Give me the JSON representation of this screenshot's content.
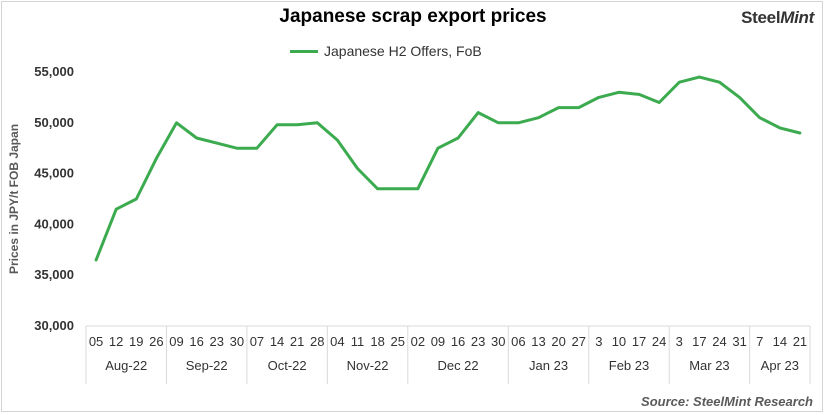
{
  "title": "Japanese scrap export prices",
  "brand": {
    "name_part1": "Steel",
    "name_part2": "Mint"
  },
  "source": "Source: SteelMint Research",
  "colors": {
    "line": "#3cab4f",
    "axis": "#d9d9d9",
    "text": "#333333"
  },
  "chart_data": {
    "type": "line",
    "title": "Japanese scrap export prices",
    "ylabel": "Prices in JPY/t FOB Japan",
    "xlabel": "",
    "ylim": [
      30000,
      55000
    ],
    "yticks": [
      30000,
      35000,
      40000,
      45000,
      50000,
      55000
    ],
    "ytick_labels": [
      "30,000",
      "35,000",
      "40,000",
      "45,000",
      "50,000",
      "55,000"
    ],
    "grid": false,
    "legend_position": "top-center",
    "x": [
      "05",
      "12",
      "19",
      "26",
      "09",
      "16",
      "23",
      "30",
      "07",
      "14",
      "21",
      "28",
      "04",
      "11",
      "18",
      "25",
      "02",
      "09",
      "16",
      "23",
      "30",
      "06",
      "13",
      "20",
      "27",
      "3",
      "10",
      "17",
      "24",
      "3",
      "17",
      "24",
      "31",
      "7",
      "14",
      "21"
    ],
    "month_groups": [
      {
        "label": "Aug-22",
        "count": 4
      },
      {
        "label": "Sep-22",
        "count": 4
      },
      {
        "label": "Oct-22",
        "count": 4
      },
      {
        "label": "Nov-22",
        "count": 4
      },
      {
        "label": "Dec 22",
        "count": 5
      },
      {
        "label": "Jan 23",
        "count": 4
      },
      {
        "label": "Feb 23",
        "count": 4
      },
      {
        "label": "Mar 23",
        "count": 4
      },
      {
        "label": "Apr 23",
        "count": 3
      }
    ],
    "series": [
      {
        "name": "Japanese H2 Offers, FoB",
        "values": [
          36500,
          41500,
          42500,
          46500,
          50000,
          48500,
          48000,
          47500,
          47500,
          49800,
          49800,
          50000,
          48300,
          45500,
          43500,
          43500,
          43500,
          47500,
          48500,
          51000,
          50000,
          50000,
          50500,
          51500,
          51500,
          52500,
          53000,
          52800,
          52000,
          54000,
          54500,
          54000,
          52500,
          50500,
          49500,
          49000
        ]
      }
    ]
  }
}
